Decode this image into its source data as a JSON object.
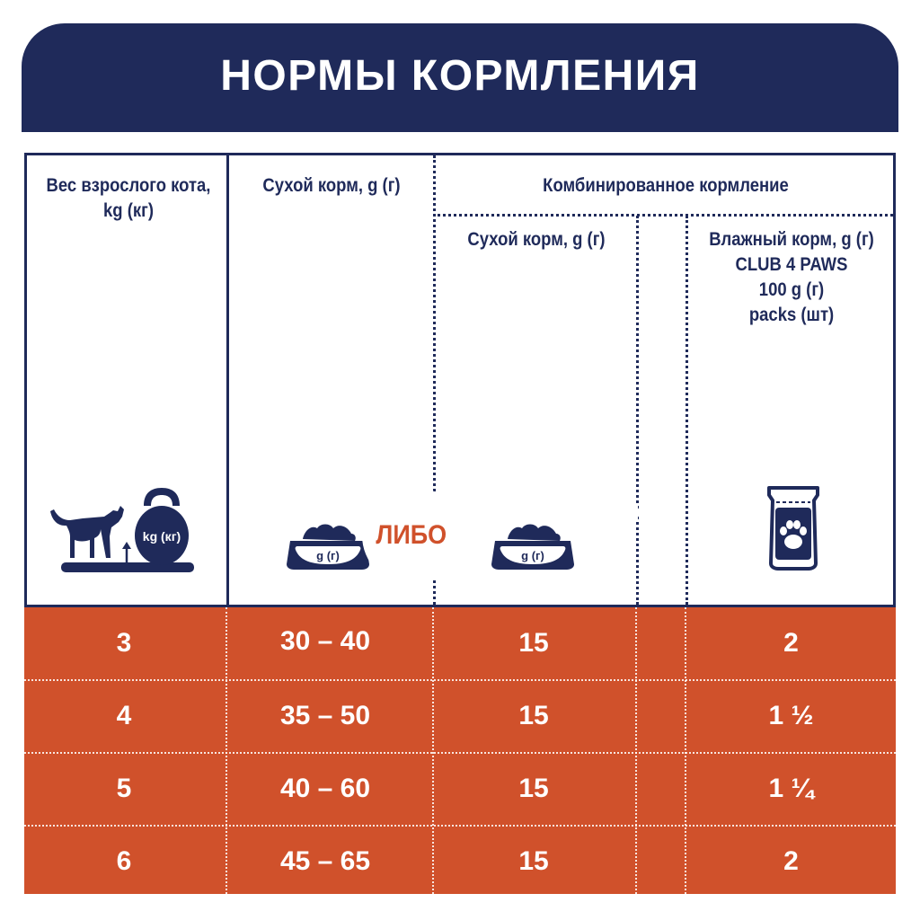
{
  "banner": {
    "title": "НОРМЫ КОРМЛЕНИЯ"
  },
  "headers": {
    "weight": "Вес взрослого кота, kg (кг)",
    "dry": "Сухой корм, g (г)",
    "combined": "Комбинированное кормление",
    "combined_dry": "Сухой корм, g (г)",
    "wet_line1": "Влажный корм, g (г)",
    "wet_line2": "CLUB 4 PAWS",
    "wet_line3": "100 g (г)",
    "wet_line4": "packs (шт)"
  },
  "icons": {
    "kettlebell_label": "kg (кг)",
    "bowl_label_1": "g (г)",
    "bowl_label_2": "g (г)"
  },
  "either_label": "ЛИБО",
  "plus_label": "+",
  "rows": [
    {
      "weight": "3",
      "dry": "30 – 40",
      "combined_dry": "15",
      "wet": "2"
    },
    {
      "weight": "4",
      "dry": "35 – 50",
      "combined_dry": "15",
      "wet": "1 ½"
    },
    {
      "weight": "5",
      "dry": "40 – 60",
      "combined_dry": "15",
      "wet": "1 ¼"
    },
    {
      "weight": "6",
      "dry": "45 – 65",
      "combined_dry": "15",
      "wet": "2"
    }
  ],
  "colors": {
    "navy": "#1f2a5a",
    "orange": "#d0512b",
    "white": "#ffffff"
  }
}
